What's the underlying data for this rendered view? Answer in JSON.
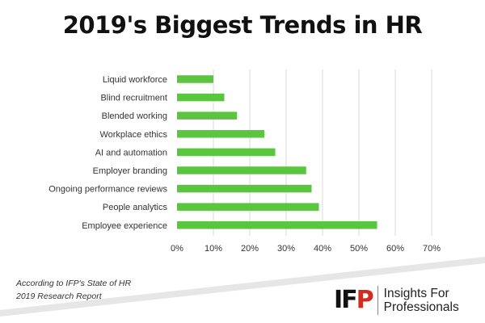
{
  "title": "2019's Biggest Trends in HR",
  "source_note": [
    "According to IFP's State of HR",
    "2019 Research Report"
  ],
  "logo": {
    "mark": [
      "I",
      "F",
      "P"
    ],
    "text": [
      "Insights For",
      "Professionals"
    ]
  },
  "colors": {
    "bar": "#5ac53e",
    "grid": "#d9d9d9",
    "logo_accent": "#d52b1e",
    "band": "#e6e6e6"
  },
  "chart_data": {
    "type": "bar",
    "orientation": "horizontal",
    "title": "",
    "xlabel": "",
    "ylabel": "",
    "categories": [
      "Liquid workforce",
      "Blind recruitment",
      "Blended working",
      "Workplace ethics",
      "AI and automation",
      "Employer branding",
      "Ongoing performance reviews",
      "People analytics",
      "Employee experience"
    ],
    "values": [
      10,
      13,
      16.5,
      24,
      27,
      35.5,
      37,
      39,
      55
    ],
    "xlim": [
      0,
      70
    ],
    "xticks": [
      "0%",
      "10%",
      "20%",
      "30%",
      "40%",
      "50%",
      "60%",
      "70%"
    ],
    "grid": true,
    "legend": "none"
  }
}
